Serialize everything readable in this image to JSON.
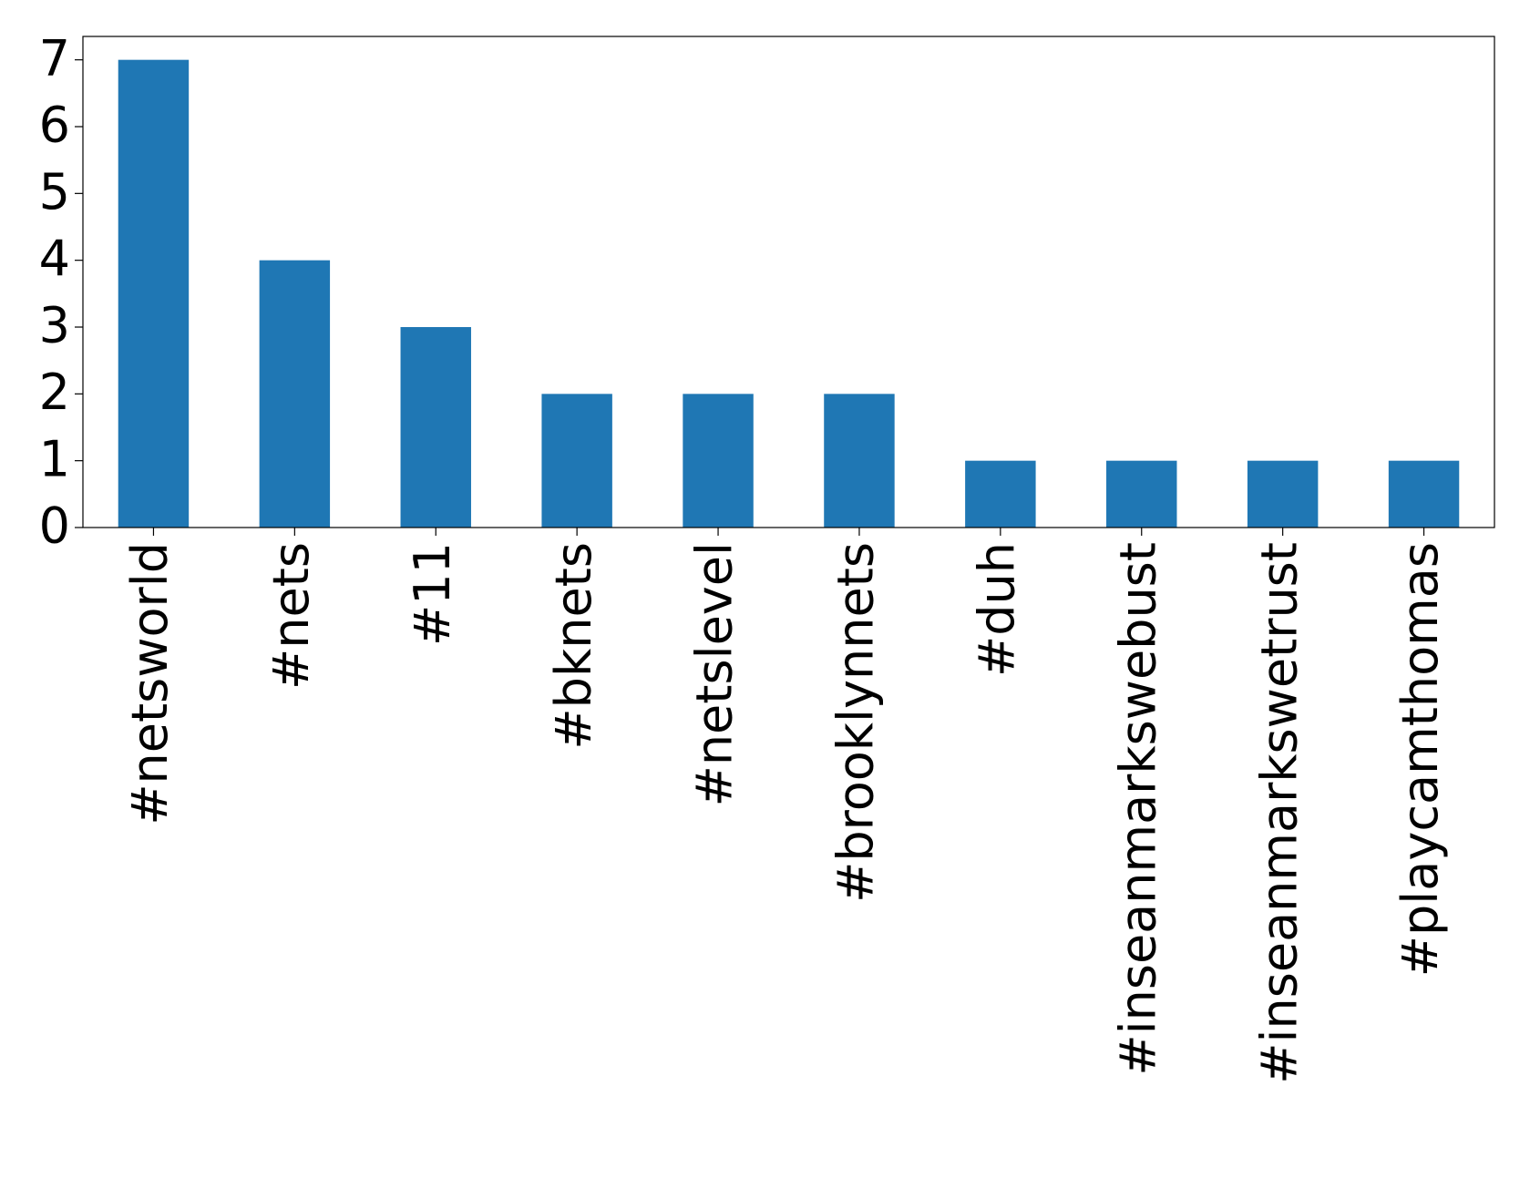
{
  "chart_data": {
    "type": "bar",
    "categories": [
      "#netsworld",
      "#nets",
      "#11",
      "#bknets",
      "#netslevel",
      "#brooklynnets",
      "#duh",
      "#inseanmarkswebust",
      "#inseanmarkswetrust",
      "#playcamthomas"
    ],
    "values": [
      7,
      4,
      3,
      2,
      2,
      2,
      1,
      1,
      1,
      1
    ],
    "color": "#1f77b4",
    "ylim": [
      0,
      7.35
    ],
    "yticks": [
      0,
      1,
      2,
      3,
      4,
      5,
      6,
      7
    ],
    "grid": false
  }
}
